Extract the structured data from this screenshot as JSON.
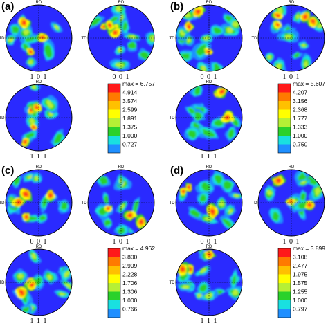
{
  "figure": {
    "axis_labels": {
      "rolling_direction": "RD",
      "transverse_direction": "TD"
    },
    "palette": [
      "#2a2aff",
      "#1f8fff",
      "#19e0e0",
      "#2bd12b",
      "#b6f035",
      "#ffff00",
      "#ffc000",
      "#ff7a00",
      "#ff1a1a"
    ],
    "panels": [
      {
        "letter": "(a)",
        "pole_figures": [
          {
            "caption": "1 0 1"
          },
          {
            "caption": "0 0 1"
          },
          {
            "caption": "1 1 1"
          }
        ],
        "legend": {
          "max_label": "max = 6.757",
          "levels": [
            "4.914",
            "3.574",
            "2.599",
            "1.891",
            "1.375",
            "1.000",
            "0.727"
          ]
        }
      },
      {
        "letter": "(b)",
        "pole_figures": [
          {
            "caption": "0 0 1"
          },
          {
            "caption": "1 0 1"
          },
          {
            "caption": "1 1 1"
          }
        ],
        "legend": {
          "max_label": "max = 5.607",
          "levels": [
            "4.207",
            "3.156",
            "2.368",
            "1.777",
            "1.333",
            "1.000",
            "0.750"
          ]
        }
      },
      {
        "letter": "(c)",
        "pole_figures": [
          {
            "caption": "0 0 1"
          },
          {
            "caption": "1 0 1"
          },
          {
            "caption": "1 1 1"
          }
        ],
        "legend": {
          "max_label": "max = 4.962",
          "levels": [
            "3.800",
            "2.909",
            "2.228",
            "1.706",
            "1.306",
            "1.000",
            "0.766"
          ]
        }
      },
      {
        "letter": "(d)",
        "pole_figures": [
          {
            "caption": "0 0 1"
          },
          {
            "caption": "1 0 1"
          },
          {
            "caption": "1 1 1"
          }
        ],
        "legend": {
          "max_label": "max = 3.899",
          "levels": [
            "3.108",
            "2.477",
            "1.975",
            "1.575",
            "1.255",
            "1.000",
            "0.797"
          ]
        }
      }
    ]
  }
}
